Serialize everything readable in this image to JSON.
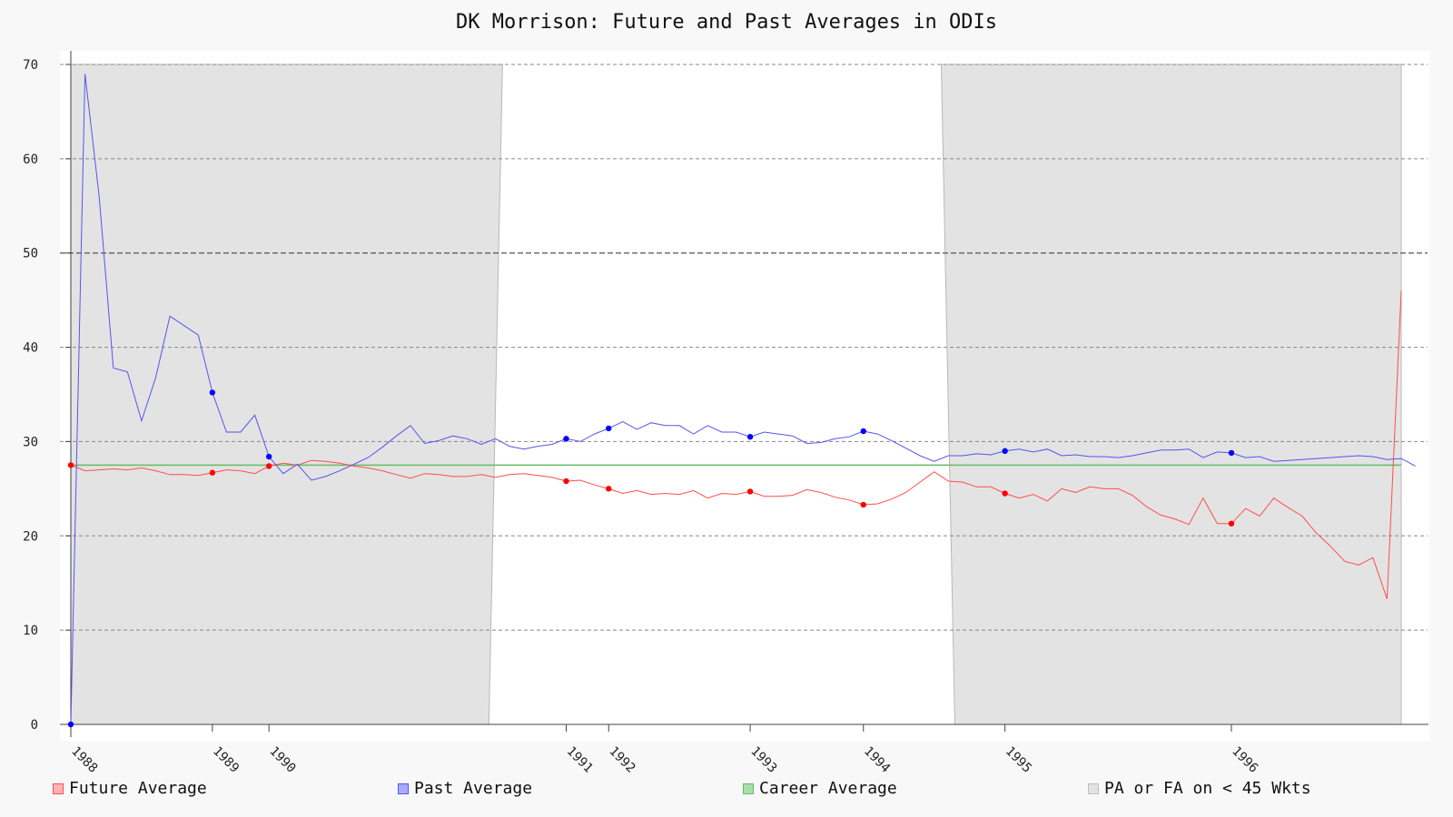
{
  "chart_data": {
    "type": "line",
    "title": "DK Morrison: Future and Past Averages in ODIs",
    "xlabel": "",
    "ylabel": "",
    "ylim": [
      0,
      70
    ],
    "yticks": [
      0,
      10,
      20,
      30,
      40,
      50,
      60,
      70
    ],
    "grid": true,
    "legend_position": "bottom",
    "x_ticks": [
      {
        "label": "1988",
        "index": 0
      },
      {
        "label": "1989",
        "index": 10
      },
      {
        "label": "1990",
        "index": 14
      },
      {
        "label": "1991",
        "index": 35
      },
      {
        "label": "1992",
        "index": 38
      },
      {
        "label": "1993",
        "index": 48
      },
      {
        "label": "1994",
        "index": 56
      },
      {
        "label": "1995",
        "index": 66
      },
      {
        "label": "1996",
        "index": 82
      }
    ],
    "shaded_regions": [
      {
        "from_index": 0,
        "to_index": 30.5
      },
      {
        "from_index": 61.5,
        "to_index": 94
      }
    ],
    "series": [
      {
        "name": "Future Average",
        "color": "#ff4d4d",
        "marker_color": "#ff0000",
        "values": [
          27.5,
          26.9,
          27.0,
          27.1,
          27.0,
          27.2,
          26.9,
          26.5,
          26.5,
          26.4,
          26.7,
          27.0,
          26.9,
          26.6,
          27.4,
          27.7,
          27.5,
          28.0,
          27.9,
          27.7,
          27.4,
          27.2,
          26.9,
          26.5,
          26.1,
          26.6,
          26.5,
          26.3,
          26.3,
          26.5,
          26.2,
          26.5,
          26.6,
          26.4,
          26.2,
          25.8,
          25.9,
          25.4,
          25.0,
          24.5,
          24.8,
          24.4,
          24.5,
          24.4,
          24.8,
          24.0,
          24.5,
          24.4,
          24.7,
          24.2,
          24.2,
          24.3,
          24.9,
          24.6,
          24.1,
          23.8,
          23.3,
          23.4,
          23.9,
          24.6,
          25.7,
          26.8,
          25.8,
          25.7,
          25.2,
          25.2,
          24.5,
          24.0,
          24.4,
          23.7,
          25.0,
          24.6,
          25.2,
          25.0,
          25.0,
          24.3,
          23.1,
          22.2,
          21.8,
          21.2,
          24.0,
          21.3,
          21.3,
          22.9,
          22.1,
          24.0,
          23.0,
          22.1,
          20.3,
          18.9,
          17.3,
          16.9,
          17.7,
          13.3,
          46.0
        ],
        "markers_at": [
          0,
          10,
          14,
          35,
          38,
          48,
          56,
          66,
          82
        ]
      },
      {
        "name": "Past Average",
        "color": "#5555ee",
        "marker_color": "#0000ff",
        "values": [
          0,
          69.0,
          56.0,
          37.8,
          37.4,
          32.2,
          36.8,
          43.3,
          42.3,
          41.3,
          35.2,
          31.0,
          31.0,
          32.8,
          28.4,
          26.6,
          27.6,
          25.9,
          26.3,
          26.9,
          27.6,
          28.3,
          29.4,
          30.6,
          31.7,
          29.8,
          30.1,
          30.6,
          30.3,
          29.7,
          30.3,
          29.5,
          29.2,
          29.5,
          29.7,
          30.3,
          30.0,
          30.8,
          31.4,
          32.1,
          31.3,
          32.0,
          31.7,
          31.7,
          30.8,
          31.7,
          31.0,
          31.0,
          30.5,
          31.0,
          30.8,
          30.6,
          29.8,
          29.9,
          30.3,
          30.5,
          31.1,
          30.8,
          30.1,
          29.3,
          28.5,
          27.9,
          28.5,
          28.5,
          28.7,
          28.6,
          29.0,
          29.2,
          28.9,
          29.2,
          28.5,
          28.6,
          28.4,
          28.4,
          28.3,
          28.5,
          28.8,
          29.1,
          29.1,
          29.2,
          28.3,
          28.9,
          28.8,
          28.3,
          28.4,
          27.9,
          28.0,
          28.1,
          28.2,
          28.3,
          28.4,
          28.5,
          28.4,
          28.1,
          28.2,
          27.4
        ],
        "markers_at": [
          0,
          10,
          14,
          35,
          38,
          48,
          56,
          66,
          82
        ]
      },
      {
        "name": "Career Average",
        "color": "#66bb66",
        "value": 27.5
      },
      {
        "name": "PA or FA on < 45 Wkts",
        "color": "#d0d0d0",
        "fill": "#e3e3e3"
      }
    ]
  }
}
